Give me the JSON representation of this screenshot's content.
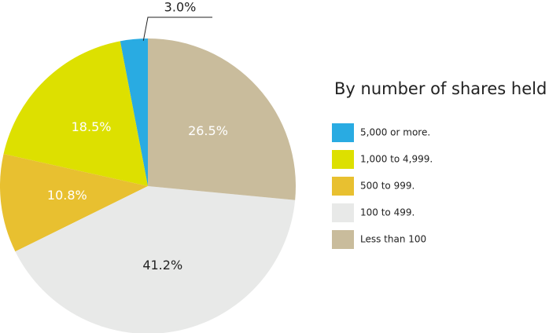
{
  "chart_data": {
    "type": "pie",
    "legend_title": "By number of shares held",
    "series": [
      {
        "name": "5,000 or more.",
        "color": "#29abe2",
        "values": [
          3.0
        ],
        "value_labels": [
          "3.0%"
        ]
      },
      {
        "name": "1,000 to 4,999.",
        "color": "#dde000",
        "values": [
          18.5
        ],
        "value_labels": [
          "18.5%"
        ]
      },
      {
        "name": "500 to 999.",
        "color": "#e8c030",
        "values": [
          10.8
        ],
        "value_labels": [
          "10.8%"
        ]
      },
      {
        "name": "100 to 499.",
        "color": "#e8e9e8",
        "values": [
          41.2
        ],
        "value_labels": [
          "41.2%"
        ]
      },
      {
        "name": "Less than 100",
        "color": "#c9bc9c",
        "values": [
          26.5
        ],
        "value_labels": [
          "26.5%"
        ]
      }
    ],
    "legend": "right"
  }
}
